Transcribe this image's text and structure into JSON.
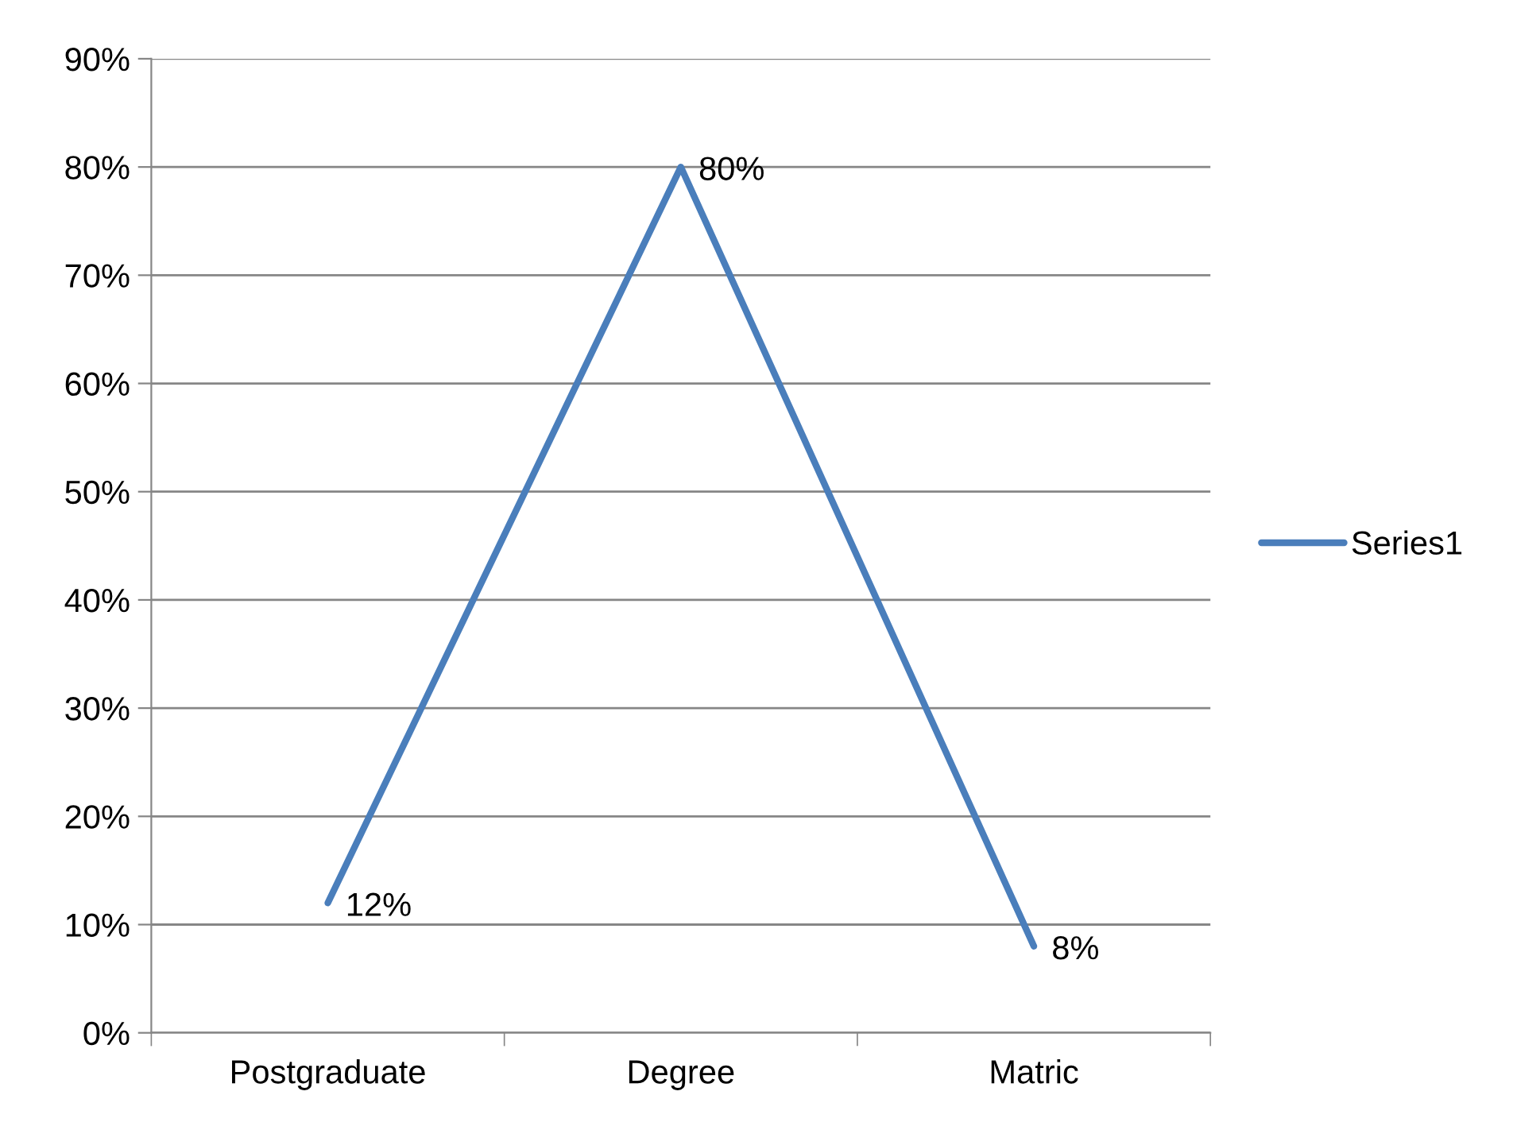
{
  "chart_data": {
    "type": "line",
    "categories": [
      "Postgraduate",
      "Degree",
      "Matric"
    ],
    "series": [
      {
        "name": "Series1",
        "color": "#4a7ebb",
        "values": [
          12,
          80,
          8
        ],
        "value_labels": [
          "12%",
          "80%",
          "8%"
        ]
      }
    ],
    "ylim": [
      0,
      90
    ],
    "yticks": [
      {
        "value": 0,
        "label": "0%"
      },
      {
        "value": 10,
        "label": "10%"
      },
      {
        "value": 20,
        "label": "20%"
      },
      {
        "value": 30,
        "label": "30%"
      },
      {
        "value": 40,
        "label": "40%"
      },
      {
        "value": 50,
        "label": "50%"
      },
      {
        "value": 60,
        "label": "60%"
      },
      {
        "value": 70,
        "label": "70%"
      },
      {
        "value": 80,
        "label": "80%"
      },
      {
        "value": 90,
        "label": "90%"
      }
    ],
    "grid": "y",
    "legend": "right",
    "marker": "none",
    "line_style": "solid"
  }
}
